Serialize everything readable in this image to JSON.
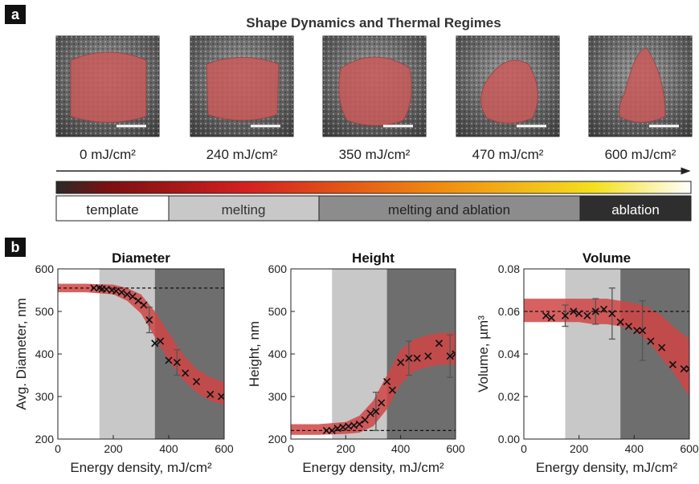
{
  "panel_labels": [
    "a",
    "b"
  ],
  "panel_a": {
    "title": "Shape Dynamics and Thermal Regimes",
    "energies": [
      "0 mJ/cm²",
      "240 mJ/cm²",
      "350 mJ/cm²",
      "470 mJ/cm²",
      "600 mJ/cm²"
    ],
    "regimes": [
      "template",
      "melting",
      "melting and ablation",
      "ablation"
    ]
  },
  "chart_data": [
    {
      "type": "scatter",
      "title": "Diameter",
      "x_label": "Energy density, mJ/cm²",
      "y_label": "Avg. Diameter, nm",
      "xlim": [
        0,
        600
      ],
      "xticks": [
        0,
        200,
        400,
        600
      ],
      "ylim": [
        200,
        600
      ],
      "yticks": [
        200,
        300,
        400,
        500,
        600
      ],
      "shaded_regions": [
        {
          "from": 150,
          "to": 350,
          "color": "#c8c8c8"
        },
        {
          "from": 350,
          "to": 600,
          "color": "#6e6e6e"
        }
      ],
      "reference_line": 555,
      "band": {
        "color": "#d04545",
        "x": [
          0,
          100,
          200,
          250,
          300,
          350,
          400,
          450,
          500,
          550,
          600
        ],
        "upper": [
          565,
          565,
          563,
          555,
          540,
          500,
          450,
          400,
          365,
          345,
          335
        ],
        "lower": [
          545,
          545,
          540,
          525,
          495,
          440,
          385,
          340,
          310,
          290,
          280
        ]
      },
      "x": [
        130,
        150,
        160,
        175,
        195,
        210,
        230,
        250,
        270,
        290,
        310,
        330,
        350,
        370,
        400,
        430,
        460,
        500,
        550,
        590
      ],
      "values": [
        555,
        555,
        553,
        552,
        550,
        548,
        545,
        540,
        535,
        525,
        515,
        480,
        425,
        430,
        385,
        380,
        355,
        335,
        305,
        300
      ],
      "errors": [
        null,
        null,
        null,
        null,
        null,
        null,
        null,
        null,
        null,
        null,
        null,
        30,
        null,
        null,
        null,
        30,
        null,
        null,
        null,
        null
      ],
      "color": "#111111"
    },
    {
      "type": "scatter",
      "title": "Height",
      "x_label": "Energy density, mJ/cm²",
      "y_label": "Height, nm",
      "xlim": [
        0,
        600
      ],
      "xticks": [
        0,
        200,
        400,
        600
      ],
      "ylim": [
        200,
        600
      ],
      "yticks": [
        200,
        300,
        400,
        500,
        600
      ],
      "shaded_regions": [
        {
          "from": 150,
          "to": 350,
          "color": "#c8c8c8"
        },
        {
          "from": 350,
          "to": 600,
          "color": "#6e6e6e"
        }
      ],
      "reference_line": 220,
      "band": {
        "color": "#d04545",
        "x": [
          0,
          100,
          200,
          250,
          300,
          350,
          400,
          450,
          500,
          550,
          600
        ],
        "upper": [
          235,
          235,
          240,
          255,
          290,
          350,
          410,
          435,
          445,
          450,
          450
        ],
        "lower": [
          210,
          210,
          212,
          215,
          230,
          270,
          330,
          360,
          370,
          375,
          375
        ]
      },
      "x": [
        130,
        150,
        170,
        190,
        210,
        230,
        250,
        270,
        290,
        310,
        330,
        350,
        370,
        400,
        430,
        460,
        500,
        540,
        580,
        600
      ],
      "values": [
        220,
        220,
        225,
        228,
        230,
        232,
        235,
        245,
        260,
        265,
        285,
        335,
        315,
        380,
        390,
        390,
        395,
        425,
        395,
        400
      ],
      "errors": [
        null,
        null,
        null,
        null,
        null,
        null,
        null,
        null,
        null,
        45,
        null,
        null,
        null,
        null,
        40,
        null,
        null,
        null,
        50,
        null
      ],
      "color": "#111111"
    },
    {
      "type": "scatter",
      "title": "Volume",
      "x_label": "Energy density, mJ/cm²",
      "y_label": "Volume, µm³",
      "xlim": [
        0,
        600
      ],
      "xticks": [
        0,
        200,
        400,
        600
      ],
      "ylim": [
        0,
        0.08
      ],
      "yticks": [
        {
          "value": 0,
          "label": "0.00"
        },
        0.02,
        0.04,
        0.06,
        0.08
      ],
      "shaded_regions": [
        {
          "from": 150,
          "to": 350,
          "color": "#c8c8c8"
        },
        {
          "from": 350,
          "to": 600,
          "color": "#6e6e6e"
        }
      ],
      "reference_line": 0.06,
      "band": {
        "color": "#d04545",
        "x": [
          0,
          100,
          200,
          250,
          300,
          350,
          400,
          450,
          500,
          550,
          600
        ],
        "upper": [
          0.066,
          0.066,
          0.066,
          0.066,
          0.066,
          0.065,
          0.064,
          0.062,
          0.058,
          0.052,
          0.047
        ],
        "lower": [
          0.055,
          0.055,
          0.055,
          0.054,
          0.054,
          0.053,
          0.051,
          0.046,
          0.038,
          0.03,
          0.02
        ]
      },
      "x": [
        80,
        100,
        150,
        180,
        200,
        230,
        260,
        290,
        320,
        350,
        380,
        410,
        430,
        460,
        500,
        540,
        580,
        600
      ],
      "values": [
        0.058,
        0.057,
        0.058,
        0.06,
        0.059,
        0.058,
        0.06,
        0.061,
        0.059,
        0.055,
        0.053,
        0.051,
        0.051,
        0.046,
        0.043,
        0.035,
        0.033,
        0.033
      ],
      "errors": [
        null,
        null,
        0.005,
        null,
        null,
        null,
        0.006,
        null,
        0.012,
        null,
        null,
        null,
        0.014,
        null,
        null,
        null,
        null,
        null
      ],
      "color": "#111111"
    }
  ]
}
